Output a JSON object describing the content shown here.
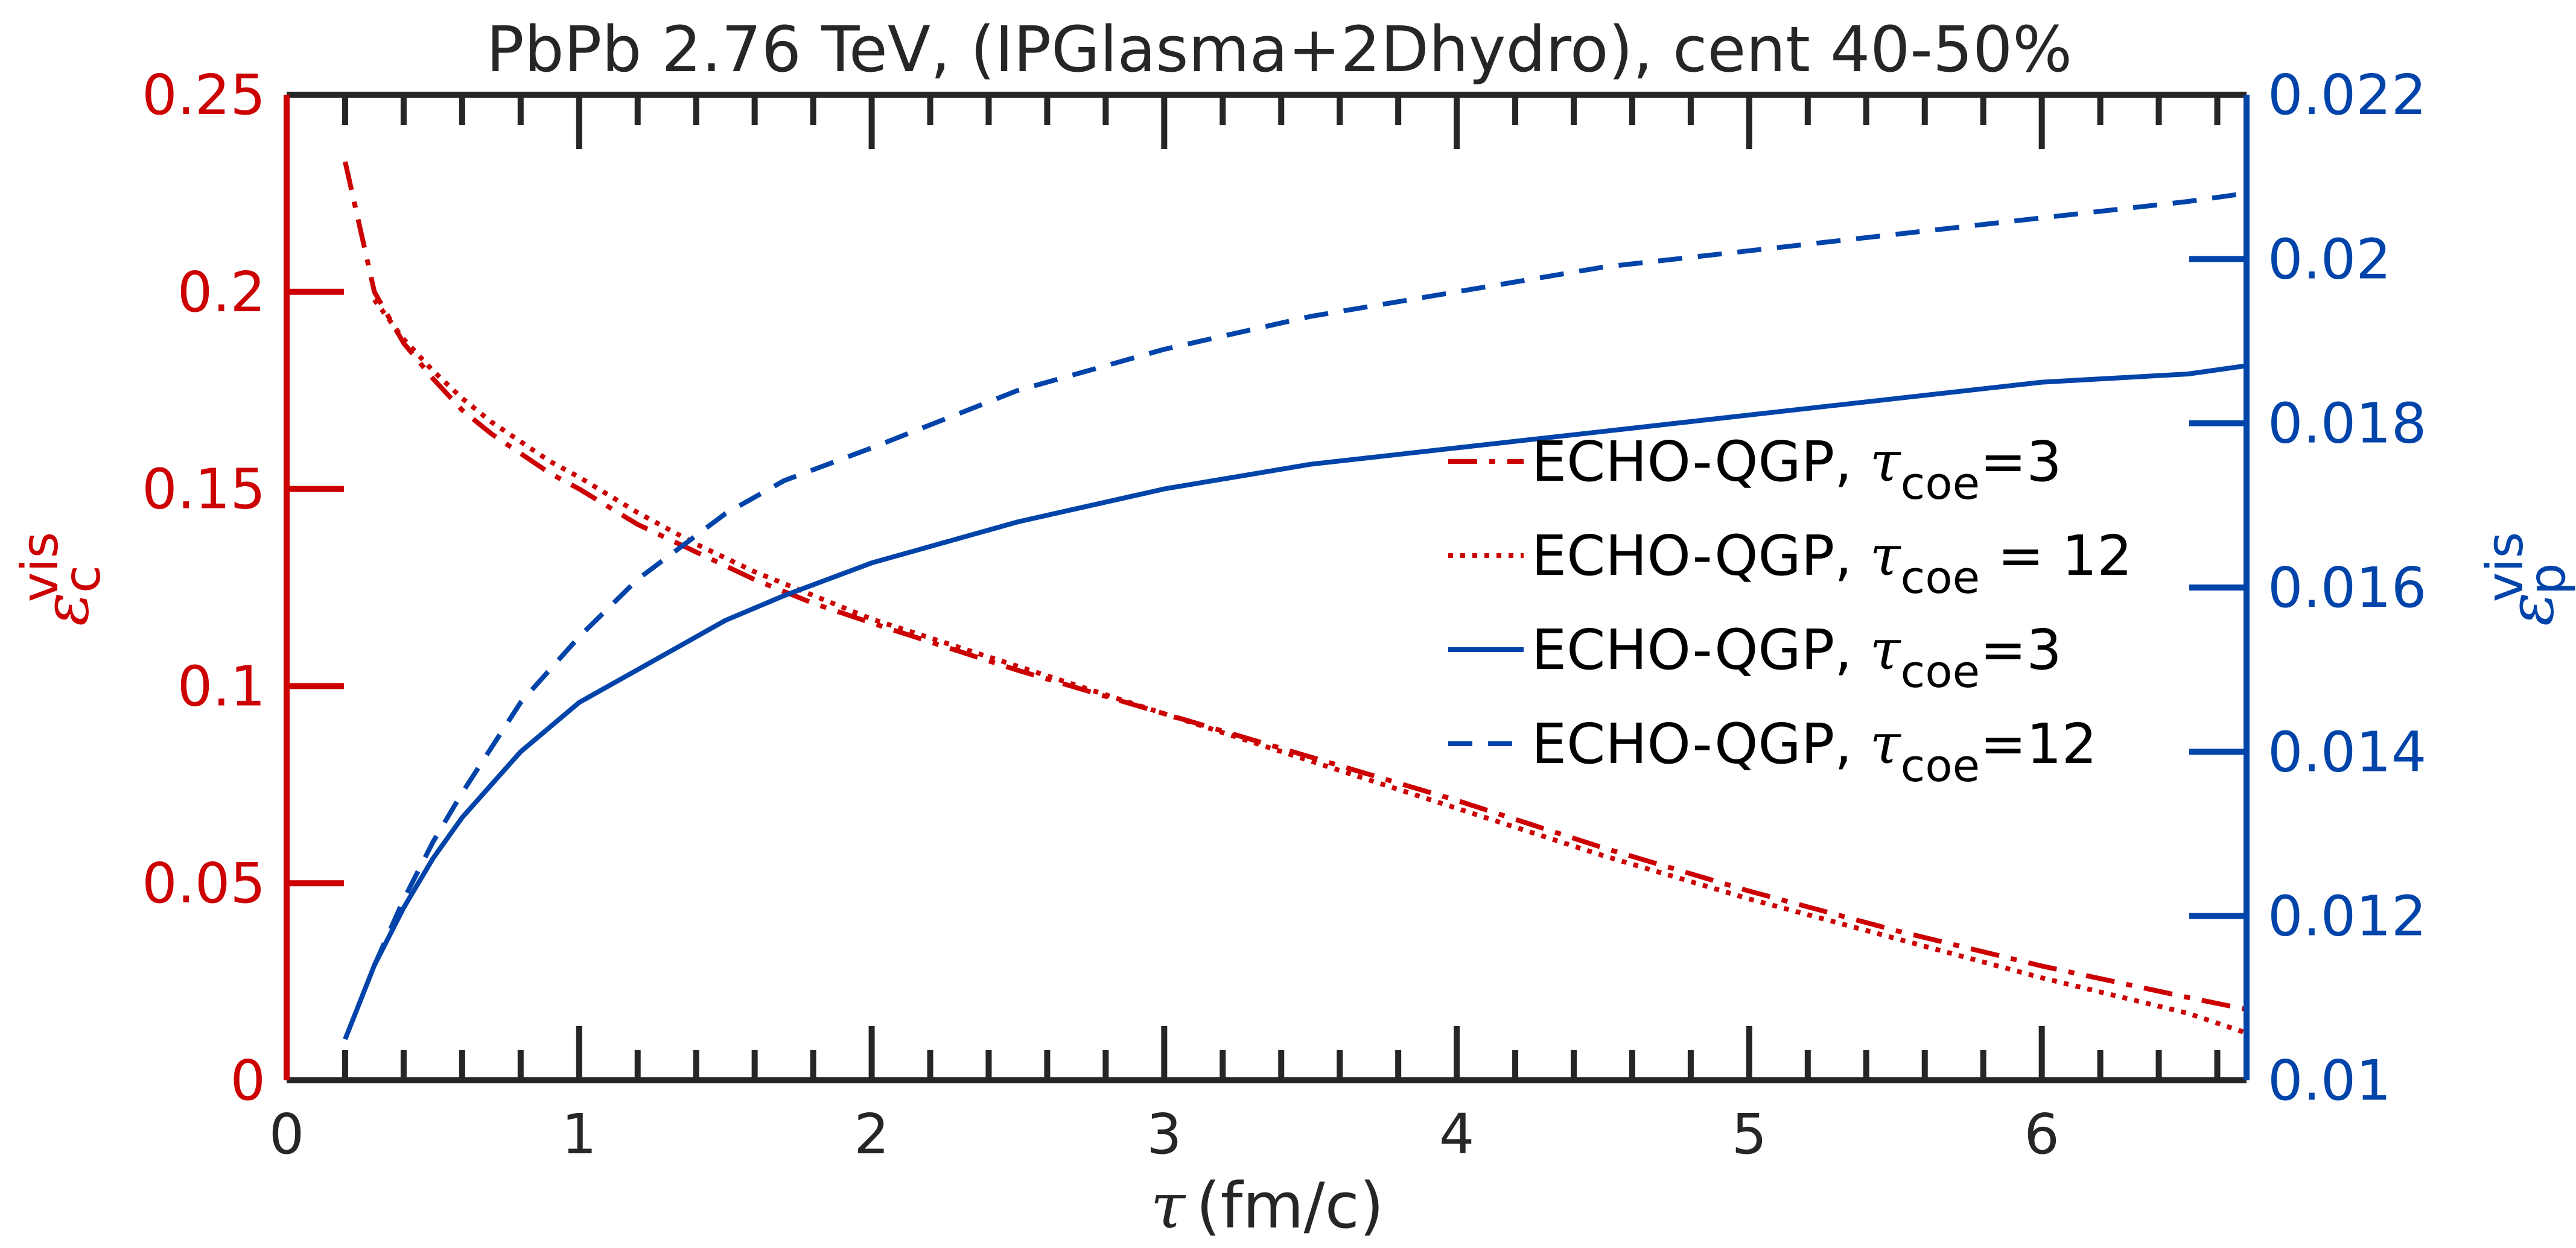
{
  "chart_data": {
    "type": "line",
    "title": "PbPb 2.76 TeV, (IPGlasma+2Dhydro), cent 40-50%",
    "xlabel": {
      "symbol": "τ",
      "unit": "(fm/c)"
    },
    "ylabel_left": {
      "symbol": "ε",
      "sup": "vis",
      "sub": "c"
    },
    "ylabel_right": {
      "symbol": "ε",
      "sup": "vis",
      "sub": "p"
    },
    "xlim": [
      0,
      6.7
    ],
    "ylim_left": [
      0,
      0.25
    ],
    "ylim_right": [
      0.01,
      0.022
    ],
    "xticks": [
      "0",
      "1",
      "2",
      "3",
      "4",
      "5",
      "6"
    ],
    "yticks_left": [
      "0",
      "0.05",
      "0.1",
      "0.15",
      "0.2",
      "0.25"
    ],
    "yticks_right": [
      "0.01",
      "0.012",
      "0.014",
      "0.016",
      "0.018",
      "0.02",
      "0.022"
    ],
    "colors": {
      "left_axis": "#cc0000",
      "right_axis": "#0044aa",
      "frame": "#262626"
    },
    "legend_position": "right",
    "series": [
      {
        "name": "ECHO-QGP, τcoe=3",
        "legend": {
          "prefix": "ECHO-QGP, ",
          "symbol": "τ",
          "sub": "coe",
          "suffix": "=3"
        },
        "axis": "left",
        "color": "#cc0000",
        "style": "dashdot",
        "x": [
          0.2,
          0.3,
          0.4,
          0.5,
          0.6,
          0.7,
          0.8,
          0.9,
          1.0,
          1.2,
          1.4,
          1.6,
          1.8,
          2.0,
          2.5,
          3.0,
          3.5,
          4.0,
          4.5,
          5.0,
          5.5,
          6.0,
          6.5,
          6.7
        ],
        "y": [
          0.233,
          0.2,
          0.187,
          0.178,
          0.17,
          0.164,
          0.159,
          0.154,
          0.15,
          0.141,
          0.134,
          0.127,
          0.121,
          0.116,
          0.104,
          0.093,
          0.082,
          0.071,
          0.059,
          0.048,
          0.038,
          0.029,
          0.021,
          0.018
        ]
      },
      {
        "name": "ECHO-QGP, τcoe = 12",
        "legend": {
          "prefix": "ECHO-QGP, ",
          "symbol": "τ",
          "sub": "coe",
          "suffix": " = 12"
        },
        "axis": "left",
        "color": "#cc0000",
        "style": "dotted",
        "x": [
          0.3,
          0.4,
          0.5,
          0.6,
          0.7,
          0.8,
          0.9,
          1.0,
          1.2,
          1.4,
          1.6,
          1.8,
          2.0,
          2.5,
          3.0,
          3.5,
          4.0,
          4.5,
          5.0,
          5.5,
          6.0,
          6.5,
          6.7
        ],
        "y": [
          0.198,
          0.188,
          0.18,
          0.173,
          0.167,
          0.162,
          0.157,
          0.153,
          0.144,
          0.136,
          0.129,
          0.123,
          0.117,
          0.105,
          0.093,
          0.081,
          0.069,
          0.057,
          0.046,
          0.036,
          0.026,
          0.017,
          0.012
        ]
      },
      {
        "name": "ECHO-QGP, τcoe=3",
        "legend": {
          "prefix": "ECHO-QGP, ",
          "symbol": "τ",
          "sub": "coe",
          "suffix": "=3"
        },
        "axis": "right",
        "color": "#0044aa",
        "style": "solid",
        "x": [
          0.2,
          0.3,
          0.4,
          0.5,
          0.6,
          0.8,
          1.0,
          1.2,
          1.5,
          1.7,
          2.0,
          2.5,
          3.0,
          3.5,
          4.0,
          4.5,
          5.0,
          5.5,
          6.0,
          6.5,
          6.7
        ],
        "y": [
          0.0105,
          0.0114,
          0.0121,
          0.0127,
          0.0132,
          0.014,
          0.0146,
          0.015,
          0.0156,
          0.0159,
          0.0163,
          0.0168,
          0.0172,
          0.0175,
          0.0177,
          0.0179,
          0.0181,
          0.0183,
          0.0185,
          0.0186,
          0.0187
        ]
      },
      {
        "name": "ECHO-QGP, τcoe=12",
        "legend": {
          "prefix": "ECHO-QGP, ",
          "symbol": "τ",
          "sub": "coe",
          "suffix": "=12"
        },
        "axis": "right",
        "color": "#0044aa",
        "style": "dashed",
        "x": [
          0.3,
          0.4,
          0.5,
          0.6,
          0.8,
          1.0,
          1.2,
          1.5,
          1.7,
          2.0,
          2.5,
          3.0,
          3.5,
          4.0,
          4.5,
          5.0,
          5.5,
          6.0,
          6.5,
          6.7
        ],
        "y": [
          0.0114,
          0.0122,
          0.0129,
          0.0135,
          0.0146,
          0.0154,
          0.0161,
          0.0169,
          0.0173,
          0.0177,
          0.0184,
          0.0189,
          0.0193,
          0.0196,
          0.0199,
          0.0201,
          0.0203,
          0.0205,
          0.0207,
          0.0208
        ]
      }
    ]
  }
}
